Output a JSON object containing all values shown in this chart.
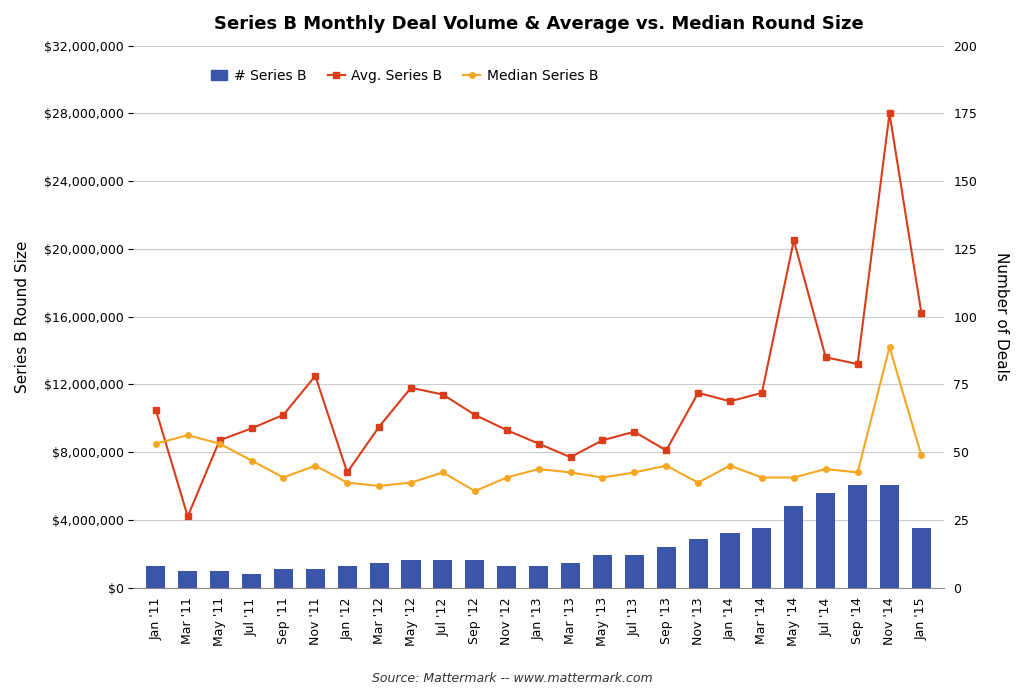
{
  "title": "Series B Monthly Deal Volume & Average vs. Median Round Size",
  "source": "Source: Mattermark -- www.mattermark.com",
  "ylabel_left": "Series B Round Size",
  "ylabel_right": "Number of Deals",
  "bar_color": "#3a55aa",
  "avg_color": "#d93d1a",
  "median_color": "#f5a623",
  "legend_labels": [
    "# Series B",
    "Avg. Series B",
    "Median Series B"
  ],
  "x_labels": [
    "Jan '11",
    "Mar '11",
    "May '11",
    "Jul '11",
    "Sep '11",
    "Nov '11",
    "Jan '12",
    "Mar '12",
    "May '12",
    "Jul '12",
    "Sep '12",
    "Nov '12",
    "Jan '13",
    "Mar '13",
    "May '13",
    "Jul '13",
    "Sep '13",
    "Nov '13",
    "Jan '14",
    "Mar '14",
    "May '14",
    "Jul '14",
    "Sep '14",
    "Nov '14",
    "Jan '15"
  ],
  "bar_values": [
    8,
    6,
    6,
    5,
    7,
    7,
    8,
    9,
    10,
    10,
    10,
    8,
    8,
    9,
    12,
    12,
    15,
    18,
    20,
    22,
    30,
    35,
    38,
    38,
    22
  ],
  "avg_values": [
    10500000,
    4200000,
    8700000,
    9400000,
    10200000,
    12500000,
    6800000,
    9500000,
    11800000,
    11400000,
    10200000,
    9300000,
    8500000,
    7700000,
    8700000,
    9200000,
    8100000,
    11500000,
    11000000,
    11500000,
    20500000,
    13600000,
    13200000,
    28000000,
    16200000
  ],
  "median_values": [
    8500000,
    9000000,
    8500000,
    7500000,
    6500000,
    7200000,
    6200000,
    6000000,
    6200000,
    6800000,
    5700000,
    6500000,
    7000000,
    6800000,
    6500000,
    6800000,
    7200000,
    6200000,
    7200000,
    6500000,
    6500000,
    7000000,
    6800000,
    14200000,
    7800000
  ],
  "ylim_left": [
    0,
    32000000
  ],
  "ylim_right": [
    0,
    200
  ],
  "yticks_left": [
    0,
    4000000,
    8000000,
    12000000,
    16000000,
    20000000,
    24000000,
    28000000,
    32000000
  ],
  "yticks_right": [
    0,
    25,
    50,
    75,
    100,
    125,
    150,
    175,
    200
  ],
  "background_color": "#ffffff"
}
